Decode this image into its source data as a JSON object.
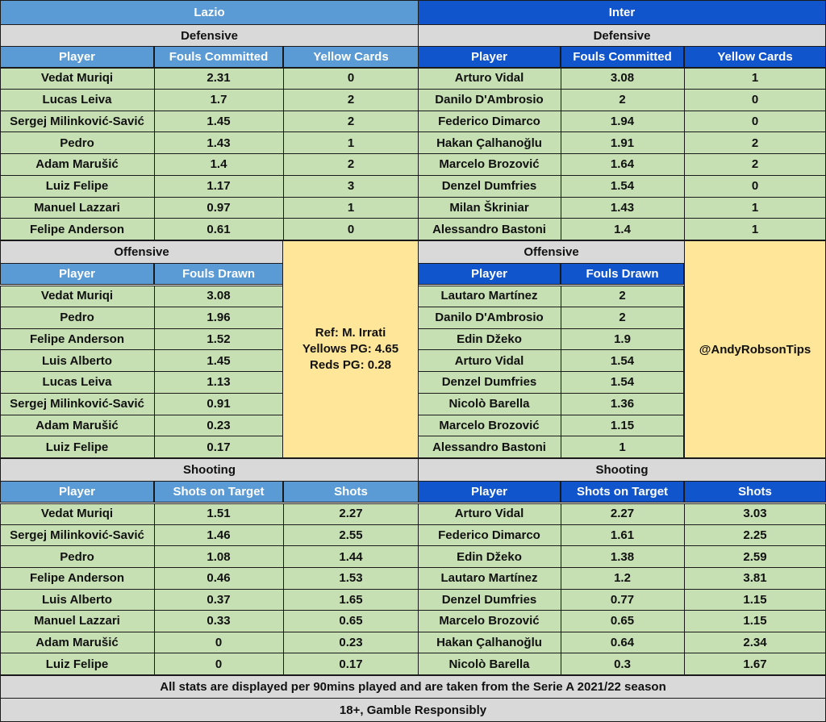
{
  "lazio": {
    "team": "Lazio",
    "defensive": {
      "title": "Defensive",
      "headers": [
        "Player",
        "Fouls Committed",
        "Yellow Cards"
      ],
      "rows": [
        [
          "Vedat Muriqi",
          "2.31",
          "0"
        ],
        [
          "Lucas Leiva",
          "1.7",
          "2"
        ],
        [
          "Sergej Milinković-Savić",
          "1.45",
          "2"
        ],
        [
          "Pedro",
          "1.43",
          "1"
        ],
        [
          "Adam Marušić",
          "1.4",
          "2"
        ],
        [
          "Luiz Felipe",
          "1.17",
          "3"
        ],
        [
          "Manuel Lazzari",
          "0.97",
          "1"
        ],
        [
          "Felipe Anderson",
          "0.61",
          "0"
        ]
      ]
    },
    "offensive": {
      "title": "Offensive",
      "headers": [
        "Player",
        "Fouls Drawn"
      ],
      "rows": [
        [
          "Vedat Muriqi",
          "3.08"
        ],
        [
          "Pedro",
          "1.96"
        ],
        [
          "Felipe Anderson",
          "1.52"
        ],
        [
          "Luis Alberto",
          "1.45"
        ],
        [
          "Lucas Leiva",
          "1.13"
        ],
        [
          "Sergej Milinković-Savić",
          "0.91"
        ],
        [
          "Adam Marušić",
          "0.23"
        ],
        [
          "Luiz Felipe",
          "0.17"
        ]
      ]
    },
    "shooting": {
      "title": "Shooting",
      "headers": [
        "Player",
        "Shots on Target",
        "Shots"
      ],
      "rows": [
        [
          "Vedat Muriqi",
          "1.51",
          "2.27"
        ],
        [
          "Sergej Milinković-Savić",
          "1.46",
          "2.55"
        ],
        [
          "Pedro",
          "1.08",
          "1.44"
        ],
        [
          "Felipe Anderson",
          "0.46",
          "1.53"
        ],
        [
          "Luis Alberto",
          "0.37",
          "1.65"
        ],
        [
          "Manuel Lazzari",
          "0.33",
          "0.65"
        ],
        [
          "Adam Marušić",
          "0",
          "0.23"
        ],
        [
          "Luiz Felipe",
          "0",
          "0.17"
        ]
      ]
    }
  },
  "inter": {
    "team": "Inter",
    "defensive": {
      "title": "Defensive",
      "headers": [
        "Player",
        "Fouls Committed",
        "Yellow Cards"
      ],
      "rows": [
        [
          "Arturo Vidal",
          "3.08",
          "1"
        ],
        [
          "Danilo D'Ambrosio",
          "2",
          "0"
        ],
        [
          "Federico Dimarco",
          "1.94",
          "0"
        ],
        [
          "Hakan Çalhanoğlu",
          "1.91",
          "2"
        ],
        [
          "Marcelo Brozović",
          "1.64",
          "2"
        ],
        [
          "Denzel Dumfries",
          "1.54",
          "0"
        ],
        [
          "Milan Škriniar",
          "1.43",
          "1"
        ],
        [
          "Alessandro Bastoni",
          "1.4",
          "1"
        ]
      ]
    },
    "offensive": {
      "title": "Offensive",
      "headers": [
        "Player",
        "Fouls Drawn"
      ],
      "rows": [
        [
          "Lautaro Martínez",
          "2"
        ],
        [
          "Danilo D'Ambrosio",
          "2"
        ],
        [
          "Edin Džeko",
          "1.9"
        ],
        [
          "Arturo Vidal",
          "1.54"
        ],
        [
          "Denzel Dumfries",
          "1.54"
        ],
        [
          "Nicolò Barella",
          "1.36"
        ],
        [
          "Marcelo Brozović",
          "1.15"
        ],
        [
          "Alessandro Bastoni",
          "1"
        ]
      ]
    },
    "shooting": {
      "title": "Shooting",
      "headers": [
        "Player",
        "Shots on Target",
        "Shots"
      ],
      "rows": [
        [
          "Arturo Vidal",
          "2.27",
          "3.03"
        ],
        [
          "Federico Dimarco",
          "1.61",
          "2.25"
        ],
        [
          "Edin Džeko",
          "1.38",
          "2.59"
        ],
        [
          "Lautaro Martínez",
          "1.2",
          "3.81"
        ],
        [
          "Denzel Dumfries",
          "0.77",
          "1.15"
        ],
        [
          "Marcelo Brozović",
          "0.65",
          "1.15"
        ],
        [
          "Hakan Çalhanoğlu",
          "0.64",
          "2.34"
        ],
        [
          "Nicolò Barella",
          "0.3",
          "1.67"
        ]
      ]
    }
  },
  "referee": {
    "line1": "Ref: M. Irrati",
    "line2": "Yellows PG: 4.65",
    "line3": "Reds PG: 0.28"
  },
  "handle": "@AndyRobsonTips",
  "footer": {
    "note": "All stats are displayed per 90mins played and are taken from the Serie A 2021/22 season",
    "disclaimer": "18+, Gamble Responsibly"
  },
  "colors": {
    "lazio_header": "#5b9bd5",
    "inter_header": "#1155cc",
    "section_grey": "#d9d9d9",
    "body_green": "#c6e0b4",
    "note_yellow": "#ffe699"
  }
}
